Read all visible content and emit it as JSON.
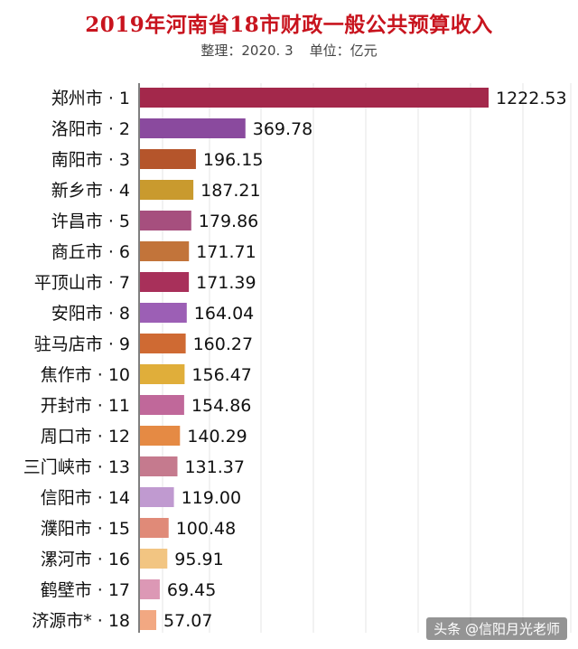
{
  "chart_data": {
    "type": "bar",
    "orientation": "horizontal",
    "title": "2019年河南省18市财政一般公共预算收入",
    "subtitle_source": "整理：2020. 3",
    "subtitle_unit": "单位：亿元",
    "categories": [
      "郑州市 · 1",
      "洛阳市 · 2",
      "南阳市 · 3",
      "新乡市 · 4",
      "许昌市 · 5",
      "商丘市 · 6",
      "平顶山市 · 7",
      "安阳市 · 8",
      "驻马店市 · 9",
      "焦作市 · 10",
      "开封市 · 11",
      "周口市 · 12",
      "三门峡市 · 13",
      "信阳市 · 14",
      "濮阳市 · 15",
      "漯河市 · 16",
      "鹤壁市 · 17",
      "济源市* · 18"
    ],
    "values": [
      1222.53,
      369.78,
      196.15,
      187.21,
      179.86,
      171.71,
      171.39,
      164.04,
      160.27,
      156.47,
      154.86,
      140.29,
      131.37,
      119.0,
      100.48,
      95.91,
      69.45,
      57.07
    ],
    "value_labels": [
      "1222.53",
      "369.78",
      "196.15",
      "187.21",
      "179.86",
      "171.71",
      "171.39",
      "164.04",
      "160.27",
      "156.47",
      "154.86",
      "140.29",
      "131.37",
      "119.00",
      "100.48",
      "95.91",
      "69.45",
      "57.07"
    ],
    "colors": [
      "#a3284b",
      "#8a4a9e",
      "#b5552b",
      "#c99a2e",
      "#a64f7e",
      "#c2743a",
      "#a8305a",
      "#9c5fb5",
      "#cf6a33",
      "#e0ae3a",
      "#c0689a",
      "#e58a44",
      "#c57a8e",
      "#c09ad0",
      "#e08a78",
      "#f2c582",
      "#dc98b5",
      "#f2a882"
    ],
    "xlim": [
      0,
      1300
    ],
    "grid": true,
    "legend": "none"
  },
  "watermark": "头条 @信阳月光老师"
}
